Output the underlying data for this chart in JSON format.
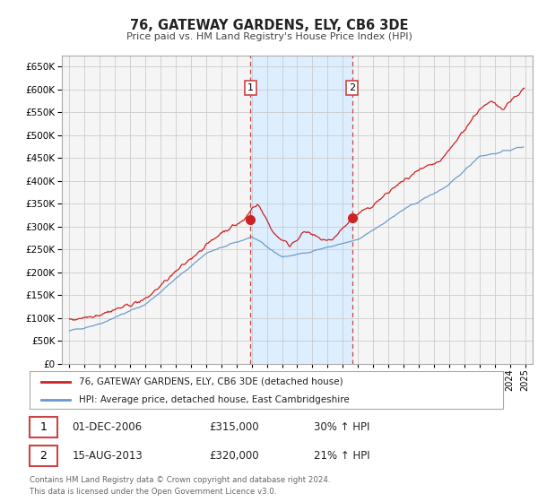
{
  "title": "76, GATEWAY GARDENS, ELY, CB6 3DE",
  "subtitle": "Price paid vs. HM Land Registry's House Price Index (HPI)",
  "legend_line1": "76, GATEWAY GARDENS, ELY, CB6 3DE (detached house)",
  "legend_line2": "HPI: Average price, detached house, East Cambridgeshire",
  "sale1_date": "01-DEC-2006",
  "sale1_price": "£315,000",
  "sale1_hpi": "30% ↑ HPI",
  "sale2_date": "15-AUG-2013",
  "sale2_price": "£320,000",
  "sale2_hpi": "21% ↑ HPI",
  "footer1": "Contains HM Land Registry data © Crown copyright and database right 2024.",
  "footer2": "This data is licensed under the Open Government Licence v3.0.",
  "sale1_x": 2006.92,
  "sale2_x": 2013.62,
  "sale1_y": 315000,
  "sale2_y": 320000,
  "hpi_color": "#6699cc",
  "price_color": "#cc2222",
  "shaded_color": "#ddeeff",
  "vline_color": "#cc4444",
  "grid_color": "#cccccc",
  "bg_color": "#f5f5f5",
  "ylim_min": 0,
  "ylim_max": 675000,
  "yticks": [
    0,
    50000,
    100000,
    150000,
    200000,
    250000,
    300000,
    350000,
    400000,
    450000,
    500000,
    550000,
    600000,
    650000
  ],
  "xlim_min": 1994.5,
  "xlim_max": 2025.5
}
